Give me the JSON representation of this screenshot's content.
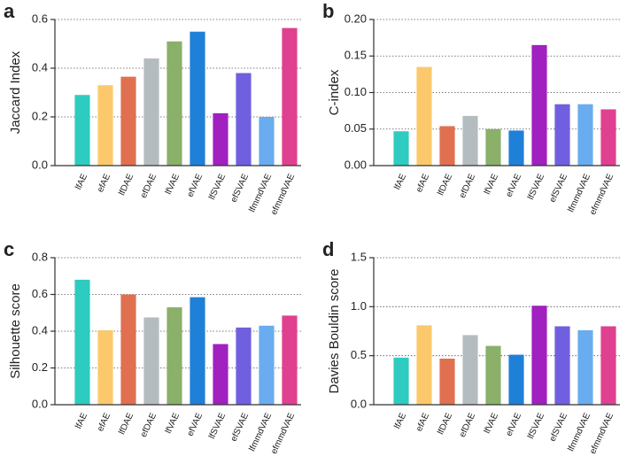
{
  "chart_data": [
    {
      "type": "bar",
      "label": "a",
      "ylabel": "Jaccard Index",
      "categories": [
        "lfAE",
        "efAE",
        "lfDAE",
        "efDAE",
        "lfVAE",
        "efVAE",
        "lfSVAE",
        "efSVAE",
        "lfmmdVAE",
        "efmmdVAE"
      ],
      "values": [
        0.29,
        0.33,
        0.365,
        0.44,
        0.51,
        0.55,
        0.215,
        0.38,
        0.2,
        0.565
      ],
      "colors": [
        "#2ecbc0",
        "#fbc96b",
        "#e07050",
        "#b4bcc0",
        "#8ab06a",
        "#1f80d8",
        "#a020c0",
        "#7060e0",
        "#6aacf0",
        "#e04090"
      ],
      "ylim": [
        0,
        0.6
      ],
      "yticks": [
        {
          "value": 0,
          "label": "0.0"
        },
        0.2,
        0.4,
        0.6
      ],
      "grid": true
    },
    {
      "type": "bar",
      "label": "b",
      "ylabel": "C-index",
      "categories": [
        "lfAE",
        "efAE",
        "lfDAE",
        "efDAE",
        "lfVAE",
        "efVAE",
        "lfSVAE",
        "efSVAE",
        "lfmmdVAE",
        "efmmdVAE"
      ],
      "values": [
        0.047,
        0.135,
        0.054,
        0.068,
        0.05,
        0.048,
        0.165,
        0.084,
        0.084,
        0.077
      ],
      "colors": [
        "#2ecbc0",
        "#fbc96b",
        "#e07050",
        "#b4bcc0",
        "#8ab06a",
        "#1f80d8",
        "#a020c0",
        "#7060e0",
        "#6aacf0",
        "#e04090"
      ],
      "ylim": [
        0,
        0.2
      ],
      "yticks": [
        {
          "value": 0,
          "label": "0.00"
        },
        0.05,
        {
          "value": 0.1,
          "label": "0.10"
        },
        0.15,
        {
          "value": 0.2,
          "label": "0.20"
        }
      ],
      "grid": true
    },
    {
      "type": "bar",
      "label": "c",
      "ylabel": "Silhouette score",
      "categories": [
        "lfAE",
        "efAE",
        "lfDAE",
        "efDAE",
        "lfVAE",
        "efVAE",
        "lfSVAE",
        "efSVAE",
        "lfmmdVAE",
        "efmmdVAE"
      ],
      "values": [
        0.68,
        0.405,
        0.6,
        0.475,
        0.53,
        0.585,
        0.33,
        0.42,
        0.43,
        0.485
      ],
      "colors": [
        "#2ecbc0",
        "#fbc96b",
        "#e07050",
        "#b4bcc0",
        "#8ab06a",
        "#1f80d8",
        "#a020c0",
        "#7060e0",
        "#6aacf0",
        "#e04090"
      ],
      "ylim": [
        0,
        0.8
      ],
      "yticks": [
        {
          "value": 0,
          "label": "0.0"
        },
        0.2,
        0.4,
        0.6,
        0.8
      ],
      "grid": true
    },
    {
      "type": "bar",
      "label": "d",
      "ylabel": "Davies Bouldin score",
      "categories": [
        "lfAE",
        "efAE",
        "lfDAE",
        "efDAE",
        "lfVAE",
        "efVAE",
        "lfSVAE",
        "efSVAE",
        "lfmmdVAE",
        "efmmdVAE"
      ],
      "values": [
        0.48,
        0.81,
        0.47,
        0.71,
        0.6,
        0.51,
        1.01,
        0.8,
        0.76,
        0.8
      ],
      "colors": [
        "#2ecbc0",
        "#fbc96b",
        "#e07050",
        "#b4bcc0",
        "#8ab06a",
        "#1f80d8",
        "#a020c0",
        "#7060e0",
        "#6aacf0",
        "#e04090"
      ],
      "ylim": [
        0,
        1.5
      ],
      "yticks": [
        {
          "value": 0,
          "label": "0.0"
        },
        0.5,
        {
          "value": 1,
          "label": "1.0"
        },
        1.5
      ],
      "grid": true
    }
  ]
}
